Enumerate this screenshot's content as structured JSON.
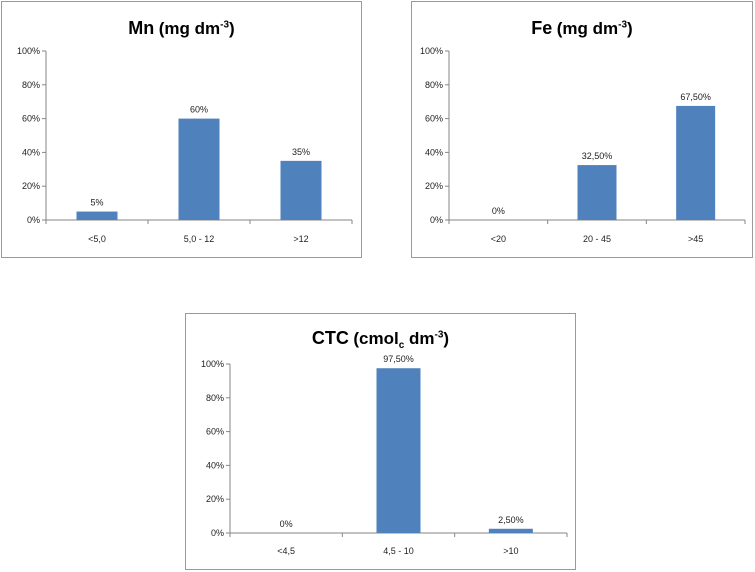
{
  "chart_data": [
    {
      "type": "bar",
      "title": {
        "main": "Mn",
        "unit": "(mg dm",
        "unit_sup": "-3",
        "unit_sub": "",
        "unit_tail": ")"
      },
      "categories": [
        "<5,0",
        "5,0 - 12",
        ">12"
      ],
      "values": [
        5,
        60,
        35
      ],
      "labels": [
        "5%",
        "60%",
        "35%"
      ],
      "ylim": [
        0,
        100
      ],
      "yticks": [
        "0%",
        "20%",
        "40%",
        "60%",
        "80%",
        "100%"
      ],
      "xlabel": "",
      "ylabel": "",
      "grid": false,
      "bar_color": "#4f81bd"
    },
    {
      "type": "bar",
      "title": {
        "main": "Fe",
        "unit": "(mg dm",
        "unit_sup": "-3",
        "unit_sub": "",
        "unit_tail": ")"
      },
      "categories": [
        "<20",
        "20 - 45",
        ">45"
      ],
      "values": [
        0,
        32.5,
        67.5
      ],
      "labels": [
        "0%",
        "32,50%",
        "67,50%"
      ],
      "ylim": [
        0,
        100
      ],
      "yticks": [
        "0%",
        "20%",
        "40%",
        "60%",
        "80%",
        "100%"
      ],
      "xlabel": "",
      "ylabel": "",
      "grid": false,
      "bar_color": "#4f81bd"
    },
    {
      "type": "bar",
      "title": {
        "main": "CTC",
        "unit": "(cmol",
        "unit_sup": "",
        "unit_sub": "c",
        "unit_tail": " dm",
        "tail_sup": "-3",
        "tail_end": ")"
      },
      "categories": [
        "<4,5",
        "4,5 - 10",
        ">10"
      ],
      "values": [
        0,
        97.5,
        2.5
      ],
      "labels": [
        "0%",
        "97,50%",
        "2,50%"
      ],
      "ylim": [
        0,
        100
      ],
      "yticks": [
        "0%",
        "20%",
        "40%",
        "60%",
        "80%",
        "100%"
      ],
      "xlabel": "",
      "ylabel": "",
      "grid": false,
      "bar_color": "#4f81bd"
    }
  ]
}
